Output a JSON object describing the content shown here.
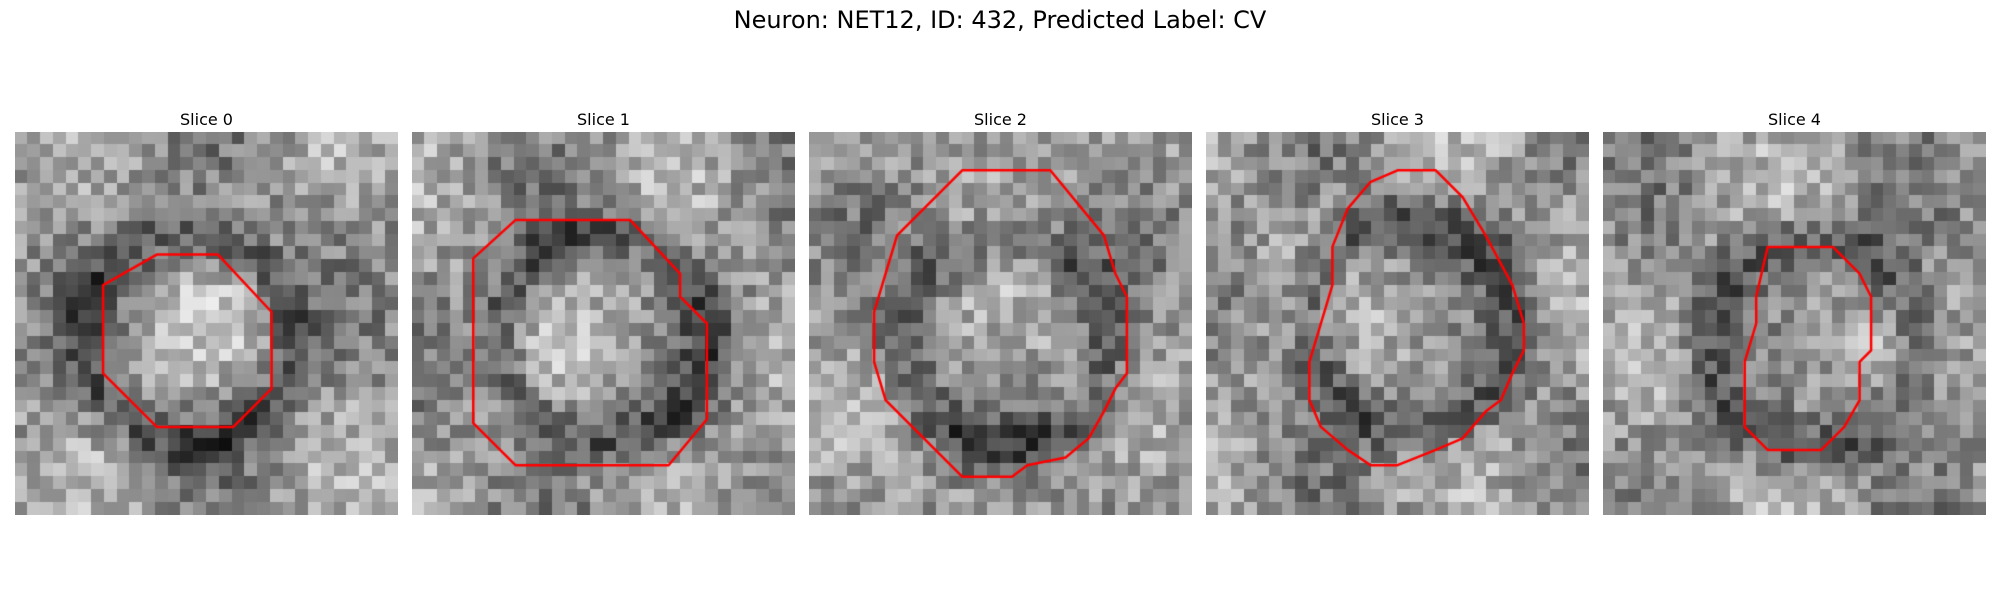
{
  "figure": {
    "title": "Neuron: NET12, ID: 432, Predicted Label: CV",
    "contour_color": "#ff0000"
  },
  "slices": [
    {
      "title": "Slice 0",
      "contour": [
        [
          0.37,
          0.32
        ],
        [
          0.53,
          0.32
        ],
        [
          0.67,
          0.47
        ],
        [
          0.67,
          0.67
        ],
        [
          0.57,
          0.77
        ],
        [
          0.37,
          0.77
        ],
        [
          0.23,
          0.63
        ],
        [
          0.23,
          0.4
        ]
      ]
    },
    {
      "title": "Slice 1",
      "contour": [
        [
          0.27,
          0.23
        ],
        [
          0.57,
          0.23
        ],
        [
          0.7,
          0.37
        ],
        [
          0.7,
          0.43
        ],
        [
          0.77,
          0.5
        ],
        [
          0.77,
          0.75
        ],
        [
          0.67,
          0.87
        ],
        [
          0.27,
          0.87
        ],
        [
          0.16,
          0.76
        ],
        [
          0.16,
          0.33
        ]
      ]
    },
    {
      "title": "Slice 2",
      "contour": [
        [
          0.4,
          0.1
        ],
        [
          0.63,
          0.1
        ],
        [
          0.77,
          0.27
        ],
        [
          0.8,
          0.37
        ],
        [
          0.83,
          0.43
        ],
        [
          0.83,
          0.63
        ],
        [
          0.8,
          0.67
        ],
        [
          0.77,
          0.73
        ],
        [
          0.73,
          0.8
        ],
        [
          0.67,
          0.85
        ],
        [
          0.57,
          0.87
        ],
        [
          0.53,
          0.9
        ],
        [
          0.4,
          0.9
        ],
        [
          0.33,
          0.83
        ],
        [
          0.2,
          0.7
        ],
        [
          0.17,
          0.6
        ],
        [
          0.17,
          0.47
        ],
        [
          0.2,
          0.37
        ],
        [
          0.23,
          0.27
        ],
        [
          0.3,
          0.2
        ]
      ]
    },
    {
      "title": "Slice 3",
      "contour": [
        [
          0.5,
          0.1
        ],
        [
          0.6,
          0.1
        ],
        [
          0.63,
          0.13
        ],
        [
          0.67,
          0.17
        ],
        [
          0.73,
          0.27
        ],
        [
          0.8,
          0.4
        ],
        [
          0.83,
          0.5
        ],
        [
          0.83,
          0.57
        ],
        [
          0.8,
          0.63
        ],
        [
          0.77,
          0.7
        ],
        [
          0.73,
          0.73
        ],
        [
          0.67,
          0.8
        ],
        [
          0.6,
          0.83
        ],
        [
          0.5,
          0.87
        ],
        [
          0.43,
          0.87
        ],
        [
          0.37,
          0.83
        ],
        [
          0.3,
          0.77
        ],
        [
          0.27,
          0.7
        ],
        [
          0.27,
          0.6
        ],
        [
          0.3,
          0.5
        ],
        [
          0.33,
          0.4
        ],
        [
          0.33,
          0.3
        ],
        [
          0.37,
          0.2
        ],
        [
          0.43,
          0.13
        ]
      ]
    },
    {
      "title": "Slice 4",
      "contour": [
        [
          0.43,
          0.3
        ],
        [
          0.6,
          0.3
        ],
        [
          0.63,
          0.33
        ],
        [
          0.67,
          0.37
        ],
        [
          0.7,
          0.43
        ],
        [
          0.7,
          0.57
        ],
        [
          0.67,
          0.6
        ],
        [
          0.67,
          0.7
        ],
        [
          0.63,
          0.77
        ],
        [
          0.57,
          0.83
        ],
        [
          0.43,
          0.83
        ],
        [
          0.37,
          0.77
        ],
        [
          0.37,
          0.6
        ],
        [
          0.4,
          0.5
        ],
        [
          0.4,
          0.43
        ]
      ]
    }
  ]
}
